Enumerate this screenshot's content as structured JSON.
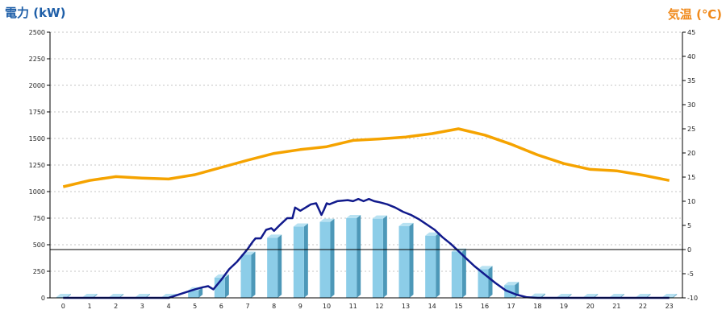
{
  "chart_data": {
    "type": "bar",
    "left_axis_title": "電力 (kW)",
    "right_axis_title": "気温 (℃)",
    "categories": [
      "0",
      "1",
      "2",
      "3",
      "4",
      "5",
      "6",
      "7",
      "8",
      "9",
      "10",
      "11",
      "12",
      "13",
      "14",
      "15",
      "16",
      "17",
      "18",
      "19",
      "20",
      "21",
      "22",
      "23"
    ],
    "ylim_left": [
      0,
      2500
    ],
    "yticks_left": [
      0,
      250,
      500,
      750,
      1000,
      1250,
      1500,
      1750,
      2000,
      2250,
      2500
    ],
    "ylim_right": [
      -10,
      45
    ],
    "yticks_right": [
      -10,
      -5,
      0,
      5,
      10,
      15,
      20,
      25,
      30,
      35,
      40,
      45
    ],
    "grid": true,
    "series": [
      {
        "kind": "bar",
        "axis": "left",
        "values": [
          0,
          0,
          0,
          0,
          0,
          70,
          190,
          405,
          565,
          670,
          715,
          750,
          745,
          675,
          585,
          435,
          270,
          120,
          10,
          0,
          0,
          0,
          0,
          0
        ]
      },
      {
        "kind": "line",
        "axis": "left",
        "x": [
          0,
          1,
          2,
          3,
          4,
          4.5,
          5,
          5.3,
          5.5,
          5.7,
          6,
          6.3,
          6.6,
          6.8,
          7,
          7.2,
          7.3,
          7.5,
          7.7,
          7.9,
          8,
          8.2,
          8.5,
          8.7,
          8.8,
          9,
          9.2,
          9.4,
          9.6,
          9.8,
          9.9,
          10,
          10.1,
          10.2,
          10.4,
          10.6,
          10.8,
          11,
          11.2,
          11.4,
          11.6,
          11.8,
          12,
          12.3,
          12.6,
          12.9,
          13.2,
          13.5,
          13.8,
          14.1,
          14.4,
          14.7,
          15,
          15.3,
          15.6,
          16,
          16.4,
          16.8,
          17.2,
          17.6,
          18,
          19,
          20,
          21,
          22,
          23
        ],
        "values": [
          0,
          0,
          0,
          0,
          0,
          40,
          80,
          100,
          110,
          80,
          170,
          270,
          340,
          400,
          460,
          530,
          560,
          560,
          640,
          655,
          630,
          680,
          750,
          750,
          850,
          820,
          850,
          880,
          890,
          780,
          830,
          890,
          880,
          890,
          910,
          915,
          920,
          910,
          930,
          910,
          930,
          910,
          900,
          880,
          850,
          810,
          780,
          740,
          690,
          640,
          570,
          510,
          440,
          370,
          300,
          220,
          140,
          70,
          30,
          5,
          0,
          0,
          0,
          0,
          0,
          0
        ]
      },
      {
        "kind": "line",
        "axis": "right",
        "x": [
          0,
          1,
          2,
          3,
          4,
          5,
          6,
          7,
          8,
          9,
          10,
          11,
          12,
          13,
          14,
          15,
          16,
          17,
          18,
          19,
          20,
          21,
          22,
          23
        ],
        "values": [
          13.0,
          14.3,
          15.1,
          14.8,
          14.6,
          15.5,
          17.0,
          18.5,
          19.9,
          20.7,
          21.3,
          22.6,
          22.9,
          23.3,
          24.0,
          25.0,
          23.7,
          21.8,
          19.6,
          17.8,
          16.6,
          16.3,
          15.4,
          14.3
        ]
      }
    ],
    "colors": {
      "left_title": "#1f5fa8",
      "right_title": "#f08a1c",
      "bar_front": "#8ccde8",
      "bar_side": "#4d98b8",
      "bar_top": "#b8e2f2",
      "power_line": "#111a8c",
      "temp_line": "#f5a300",
      "grid": "#c4c4c4",
      "zero_line": "#000000"
    }
  }
}
